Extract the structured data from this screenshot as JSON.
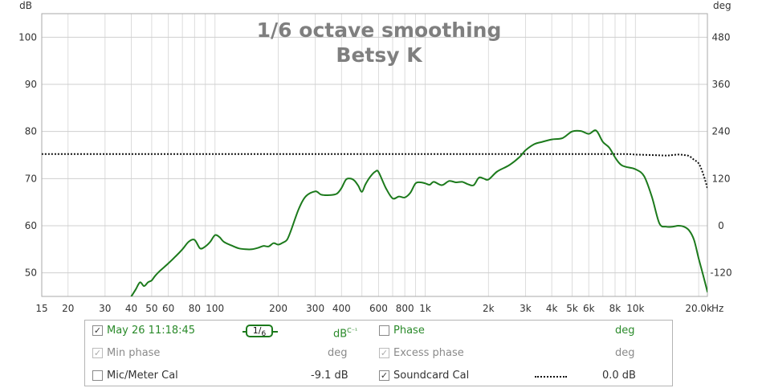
{
  "chart_data": {
    "type": "line",
    "title": "1/6 octave smoothing",
    "subtitle": "Betsy K",
    "ylabel": "dB",
    "y2label": "deg",
    "xlabel": "Hz",
    "xscale": "log",
    "xlim": [
      15,
      22000
    ],
    "ylim": [
      45,
      105
    ],
    "y2lim": [
      -180,
      540
    ],
    "grid": true,
    "x_ticks": [
      {
        "v": 15,
        "label": "15"
      },
      {
        "v": 20,
        "label": "20"
      },
      {
        "v": 30,
        "label": "30"
      },
      {
        "v": 40,
        "label": "40"
      },
      {
        "v": 50,
        "label": "50"
      },
      {
        "v": 60,
        "label": "60"
      },
      {
        "v": 80,
        "label": "80"
      },
      {
        "v": 100,
        "label": "100"
      },
      {
        "v": 200,
        "label": "200"
      },
      {
        "v": 300,
        "label": "300"
      },
      {
        "v": 400,
        "label": "400"
      },
      {
        "v": 600,
        "label": "600"
      },
      {
        "v": 800,
        "label": "800"
      },
      {
        "v": 1000,
        "label": "1k"
      },
      {
        "v": 2000,
        "label": "2k"
      },
      {
        "v": 3000,
        "label": "3k"
      },
      {
        "v": 4000,
        "label": "4k"
      },
      {
        "v": 5000,
        "label": "5k"
      },
      {
        "v": 6000,
        "label": "6k"
      },
      {
        "v": 8000,
        "label": "8k"
      },
      {
        "v": 10000,
        "label": "10k"
      },
      {
        "v": 20000,
        "label": "20.0k"
      }
    ],
    "y_ticks": [
      {
        "v": 50,
        "label": "50"
      },
      {
        "v": 60,
        "label": "60"
      },
      {
        "v": 70,
        "label": "70"
      },
      {
        "v": 80,
        "label": "80"
      },
      {
        "v": 90,
        "label": "90"
      },
      {
        "v": 100,
        "label": "100"
      }
    ],
    "y2_ticks": [
      {
        "v": -120,
        "label": "-120"
      },
      {
        "v": 0,
        "label": "0"
      },
      {
        "v": 120,
        "label": "120"
      },
      {
        "v": 240,
        "label": "240"
      },
      {
        "v": 360,
        "label": "360"
      },
      {
        "v": 480,
        "label": "480"
      }
    ],
    "series": [
      {
        "name": "May 26 11:18:45",
        "color": "#1c7a1c",
        "x": [
          40,
          42,
          44,
          46,
          48,
          50,
          52,
          55,
          60,
          65,
          70,
          75,
          80,
          85,
          90,
          95,
          100,
          105,
          110,
          120,
          130,
          140,
          150,
          160,
          170,
          180,
          190,
          200,
          210,
          220,
          230,
          250,
          270,
          300,
          320,
          350,
          380,
          400,
          420,
          440,
          460,
          480,
          500,
          520,
          550,
          580,
          600,
          650,
          700,
          750,
          800,
          850,
          900,
          950,
          1000,
          1050,
          1100,
          1200,
          1300,
          1400,
          1500,
          1600,
          1700,
          1800,
          1900,
          2000,
          2200,
          2500,
          2800,
          3000,
          3300,
          3600,
          4000,
          4500,
          5000,
          5500,
          6000,
          6500,
          7000,
          7500,
          8000,
          8500,
          9000,
          10000,
          11000,
          12000,
          13000,
          14000,
          15000,
          16000,
          17000,
          18000,
          19000,
          20000,
          21000,
          22000
        ],
        "y": [
          45,
          46.5,
          48,
          47.2,
          48,
          48.4,
          49.4,
          50.5,
          52,
          53.5,
          55,
          56.6,
          57,
          55.2,
          55.6,
          56.6,
          58,
          57.6,
          56.6,
          55.8,
          55.2,
          55,
          55,
          55.3,
          55.7,
          55.6,
          56.3,
          56,
          56.4,
          57,
          59,
          63.5,
          66.2,
          67.3,
          66.6,
          66.5,
          66.8,
          68,
          69.8,
          70,
          69.6,
          68.5,
          67.2,
          68.8,
          70.5,
          71.5,
          71.4,
          68,
          65.8,
          66.2,
          66,
          67,
          69,
          69.2,
          69,
          68.7,
          69.3,
          68.6,
          69.5,
          69.2,
          69.3,
          68.8,
          68.6,
          70.2,
          70,
          69.8,
          71.5,
          72.8,
          74.5,
          76,
          77.3,
          77.8,
          78.3,
          78.6,
          80,
          80.1,
          79.5,
          80.2,
          77.8,
          76.6,
          74.5,
          73,
          72.5,
          72,
          70.5,
          66,
          60.5,
          59.8,
          59.8,
          60,
          59.8,
          59,
          57,
          53,
          49.5,
          46
        ]
      },
      {
        "name": "Soundcard Cal",
        "color": "#111111",
        "style": "dotted",
        "x": [
          15,
          100,
          1000,
          5000,
          9000,
          10000,
          12000,
          14000,
          15000,
          16000,
          17000,
          18000,
          19000,
          20000,
          21000,
          22000
        ],
        "y": [
          75.2,
          75.2,
          75.2,
          75.2,
          75.2,
          75.1,
          75,
          74.9,
          75,
          75.1,
          75,
          74.8,
          74,
          73.2,
          71,
          68
        ]
      }
    ]
  },
  "legend": {
    "row1": {
      "name": "May 26 11:18:45",
      "smoothing_num": "1",
      "smoothing_den": "6",
      "unit": "dB",
      "unit_sup": "C⁻¹",
      "phase_label": "Phase",
      "phase_unit": "deg"
    },
    "row2": {
      "min_phase_label": "Min phase",
      "min_phase_unit": "deg",
      "excess_phase_label": "Excess phase",
      "excess_phase_unit": "deg"
    },
    "row3": {
      "mic_label": "Mic/Meter Cal",
      "mic_value": "-9.1 dB",
      "soundcard_label": "Soundcard Cal",
      "soundcard_value": "0.0 dB"
    },
    "checkmark": "✓"
  }
}
